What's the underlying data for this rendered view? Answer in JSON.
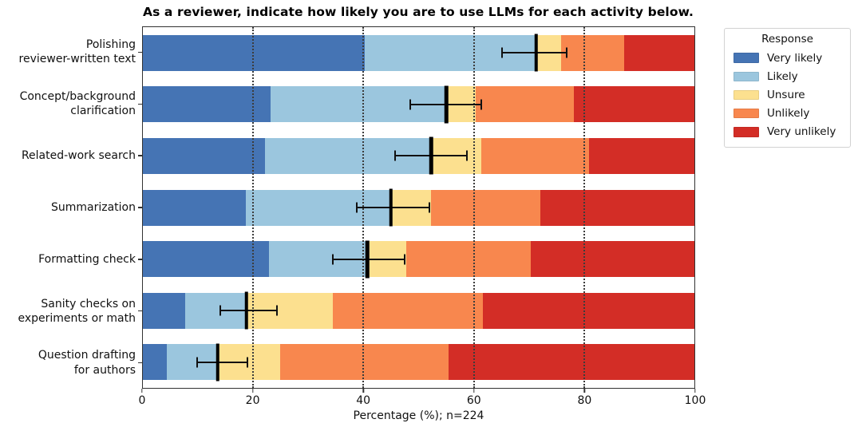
{
  "chart_data": {
    "type": "bar",
    "orientation": "horizontal",
    "stacked": true,
    "title": "As a reviewer, indicate how likely you are to use LLMs for each activity below.",
    "xlabel": "Percentage (%); n=224",
    "xlim": [
      0,
      100
    ],
    "xticks": [
      0,
      20,
      40,
      60,
      80,
      100
    ],
    "grid_xticks": [
      20,
      40,
      60,
      80
    ],
    "grid_style": "vertical dotted black lines drawn over bars",
    "legend": {
      "title": "Response",
      "position": "outside-upper-right"
    },
    "categories": [
      "Polishing reviewer-written text",
      "Concept/background clarification",
      "Related-work search",
      "Summarization",
      "Formatting check",
      "Sanity checks on experiments or math",
      "Question drafting for authors"
    ],
    "category_lines": [
      [
        "Polishing",
        "reviewer-written text"
      ],
      [
        "Concept/background",
        "clarification"
      ],
      [
        "Related-work search"
      ],
      [
        "Summarization"
      ],
      [
        "Formatting check"
      ],
      [
        "Sanity checks on",
        "experiments or math"
      ],
      [
        "Question drafting",
        "for authors"
      ]
    ],
    "series": [
      {
        "name": "Very likely",
        "color": "#4574b4",
        "values": [
          40.2,
          23.1,
          22.1,
          18.6,
          22.8,
          7.6,
          4.4
        ]
      },
      {
        "name": "Likely",
        "color": "#9bc6de",
        "values": [
          31.1,
          31.9,
          30.2,
          26.4,
          17.9,
          11.2,
          9.2
        ]
      },
      {
        "name": "Unsure",
        "color": "#fce08f",
        "values": [
          4.5,
          5.3,
          9.1,
          7.3,
          7.0,
          15.6,
          11.3
        ]
      },
      {
        "name": "Unlikely",
        "color": "#f8874e",
        "values": [
          11.4,
          17.9,
          19.5,
          19.8,
          22.7,
          27.2,
          30.6
        ]
      },
      {
        "name": "Very unlikely",
        "color": "#d32d26",
        "values": [
          12.8,
          21.8,
          19.1,
          27.9,
          29.6,
          38.4,
          44.5
        ]
      }
    ],
    "error_bars": {
      "note": "black error bar drawn at the cumulative Very likely + Likely boundary of each bar",
      "center": [
        71.3,
        55.0,
        52.3,
        45.0,
        40.7,
        18.8,
        13.6
      ],
      "low": [
        65.1,
        48.5,
        45.7,
        38.8,
        34.4,
        14.0,
        9.8
      ],
      "high": [
        76.8,
        61.3,
        58.8,
        52.0,
        47.4,
        24.3,
        19.0
      ]
    }
  }
}
